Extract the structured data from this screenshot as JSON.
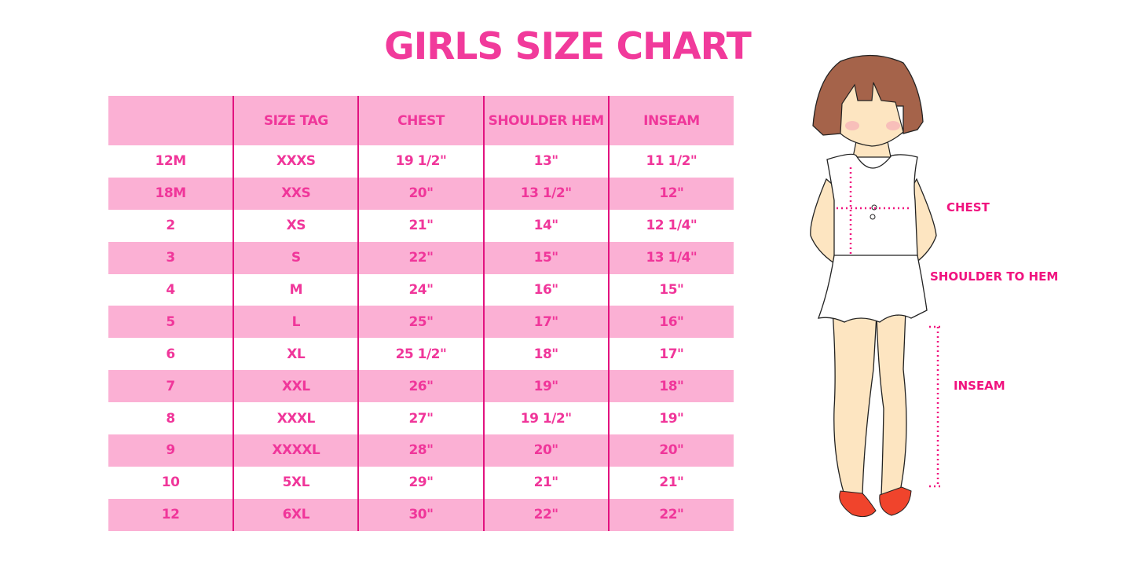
{
  "title": "GIRLS SIZE CHART",
  "table": {
    "headers": [
      "",
      "SIZE TAG",
      "CHEST",
      "SHOULDER HEM",
      "INSEAM"
    ],
    "rows": [
      [
        "12M",
        "XXXS",
        "19 1/2\"",
        "13\"",
        "11 1/2\""
      ],
      [
        "18M",
        "XXS",
        "20\"",
        "13 1/2\"",
        "12\""
      ],
      [
        "2",
        "XS",
        "21\"",
        "14\"",
        "12 1/4\""
      ],
      [
        "3",
        "S",
        "22\"",
        "15\"",
        "13 1/4\""
      ],
      [
        "4",
        "M",
        "24\"",
        "16\"",
        "15\""
      ],
      [
        "5",
        "L",
        "25\"",
        "17\"",
        "16\""
      ],
      [
        "6",
        "XL",
        "25 1/2\"",
        "18\"",
        "17\""
      ],
      [
        "7",
        "XXL",
        "26\"",
        "19\"",
        "18\""
      ],
      [
        "8",
        "XXXL",
        "27\"",
        "19 1/2\"",
        "19\""
      ],
      [
        "9",
        "XXXXL",
        "28\"",
        "20\"",
        "20\""
      ],
      [
        "10",
        "5XL",
        "29\"",
        "21\"",
        "21\""
      ],
      [
        "12",
        "6XL",
        "30\"",
        "22\"",
        "22\""
      ]
    ]
  },
  "figure": {
    "labels": {
      "chest": "CHEST",
      "shoulder_to_hem": "SHOULDER TO HEM",
      "inseam": "INSEAM"
    }
  },
  "colors": {
    "accent": "#f0369a",
    "row_pink": "#fbb0d4",
    "divider": "#e2127f",
    "measure": "#f0137f"
  }
}
